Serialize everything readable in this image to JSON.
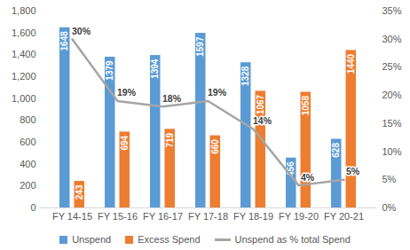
{
  "chart_data": {
    "type": "bar",
    "categories": [
      "FY 14-15",
      "FY 15-16",
      "FY 16-17",
      "FY 17-18",
      "FY 18-19",
      "FY 19-20",
      "FY 20-21"
    ],
    "series": [
      {
        "name": "Unspend",
        "type": "bar",
        "color": "#5B9BD5",
        "values": [
          1648,
          1379,
          1394,
          1597,
          1328,
          456,
          628
        ]
      },
      {
        "name": "Excess Spend",
        "type": "bar",
        "color": "#ED7D31",
        "values": [
          243,
          694,
          719,
          660,
          1067,
          1058,
          1440
        ]
      },
      {
        "name": "Unspend as % total Spend",
        "type": "line",
        "color": "#A5A5A5",
        "axis": "y2",
        "values": [
          30,
          19,
          18,
          19,
          14,
          4,
          5
        ],
        "value_labels": [
          "30%",
          "19%",
          "18%",
          "19%",
          "14%",
          "4%",
          "5%"
        ]
      }
    ],
    "ylim": [
      0,
      1800
    ],
    "yticks": [
      0,
      200,
      400,
      600,
      800,
      {
        "value": 1000,
        "label": "1,000"
      },
      {
        "value": 1200,
        "label": "1,200"
      },
      {
        "value": 1400,
        "label": "1,400"
      },
      {
        "value": 1600,
        "label": "1,600"
      },
      {
        "value": 1800,
        "label": "1,800"
      }
    ],
    "y2lim": [
      0,
      35
    ],
    "y2ticks": [
      {
        "value": 0,
        "label": "0%"
      },
      {
        "value": 5,
        "label": "5%"
      },
      {
        "value": 10,
        "label": "10%"
      },
      {
        "value": 15,
        "label": "15%"
      },
      {
        "value": 20,
        "label": "20%"
      },
      {
        "value": 25,
        "label": "25%"
      },
      {
        "value": 30,
        "label": "30%"
      },
      {
        "value": 35,
        "label": "35%"
      }
    ],
    "data_labels": true,
    "grid": false,
    "legend": "bottom"
  }
}
